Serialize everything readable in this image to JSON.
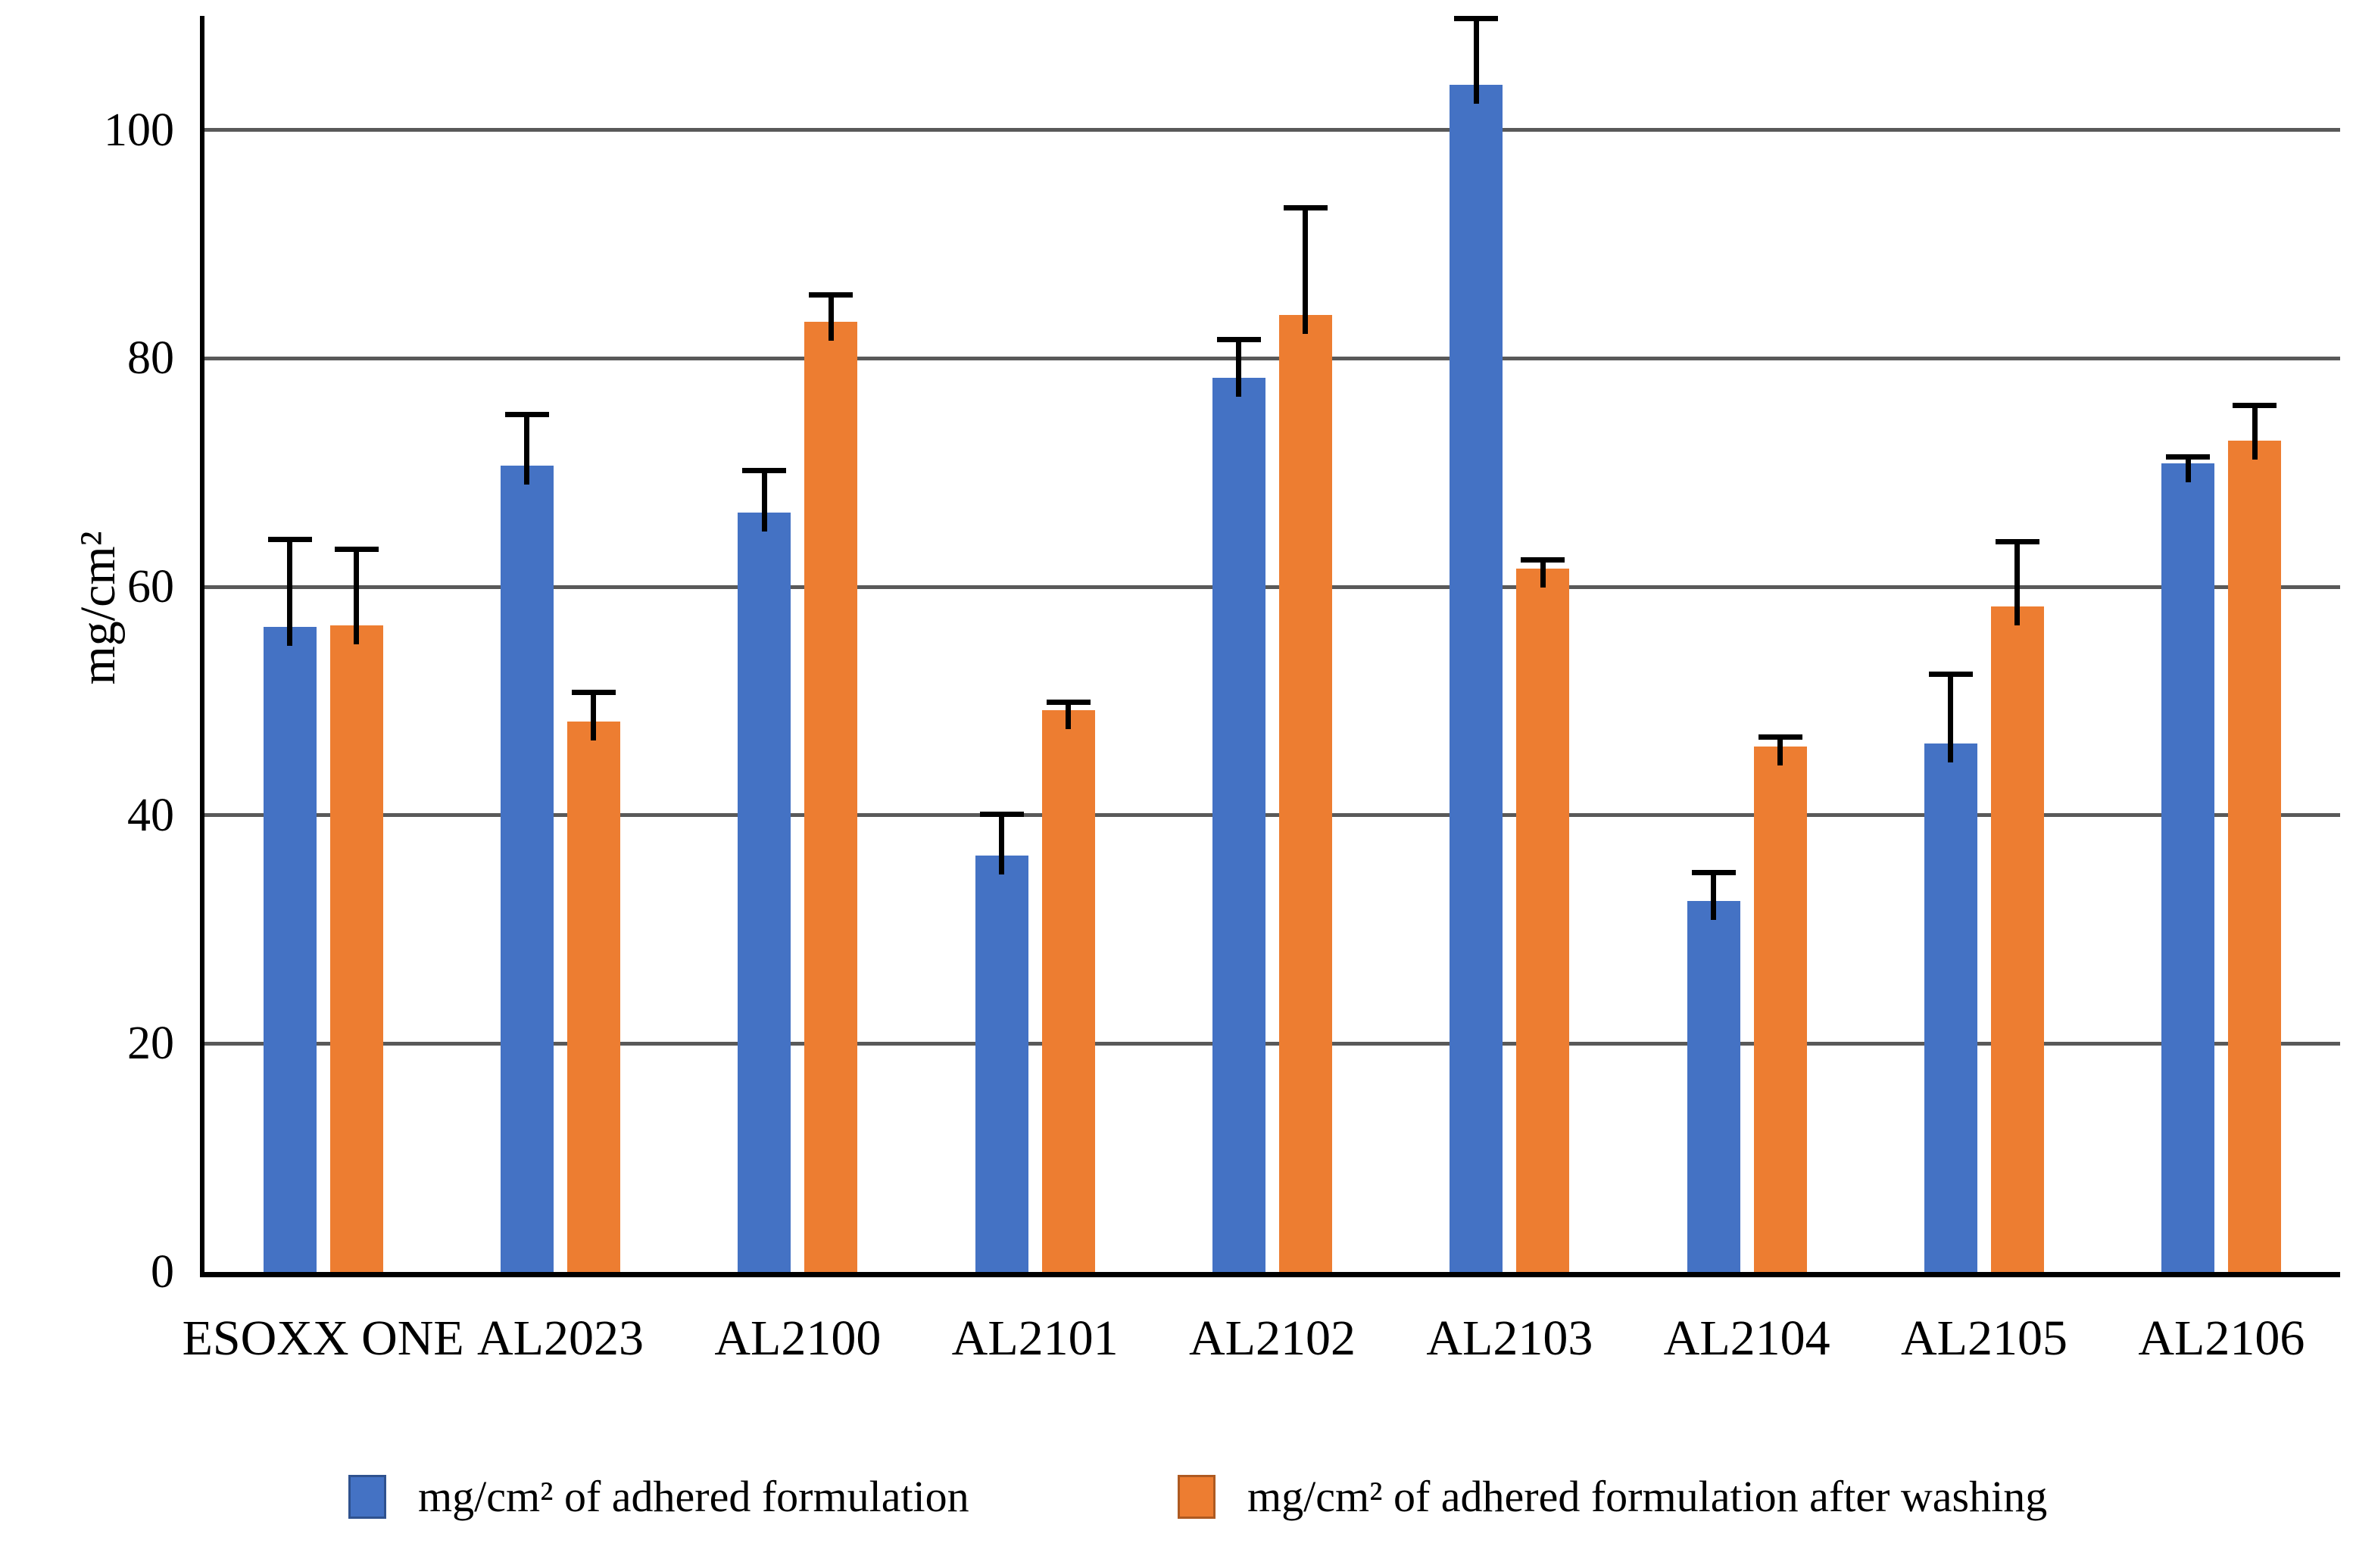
{
  "chart_data": {
    "type": "bar",
    "title": "",
    "xlabel": "",
    "ylabel": "mg/cm²",
    "categories": [
      "ESOXX ONE",
      "AL2023",
      "AL2100",
      "AL2101",
      "AL2102",
      "AL2103",
      "AL2104",
      "AL2105",
      "AL2106"
    ],
    "series": [
      {
        "name": "mg/cm² of adhered formulation",
        "color": "#4472C4",
        "border_color": "#2F528F",
        "values": [
          56.5,
          70.6,
          66.5,
          36.5,
          78.3,
          104.0,
          32.5,
          46.3,
          70.8
        ],
        "errors_plus": [
          7.9,
          4.7,
          3.9,
          3.8,
          3.6,
          6.0,
          2.7,
          6.3,
          0.8
        ]
      },
      {
        "name": "mg/cm² of adhered formulation after washing",
        "color": "#ED7D31",
        "border_color": "#AE5A21",
        "values": [
          56.6,
          48.2,
          83.2,
          49.2,
          83.8,
          61.6,
          46.0,
          58.3,
          72.8
        ],
        "errors_plus": [
          6.9,
          2.8,
          2.6,
          0.9,
          9.6,
          1.0,
          1.1,
          5.9,
          3.3
        ]
      }
    ],
    "ylim": [
      0,
      110
    ],
    "yticks": [
      0,
      20,
      40,
      60,
      80,
      100
    ],
    "grid": true,
    "gridline_color": "#595959",
    "error_bar_color": "#000000",
    "legend_position": "bottom"
  },
  "legend": {
    "items": [
      {
        "label": "mg/cm² of adhered formulation",
        "color": "#4472C4"
      },
      {
        "label": "mg/cm² of adhered formulation after washing",
        "color": "#ED7D31"
      }
    ]
  }
}
